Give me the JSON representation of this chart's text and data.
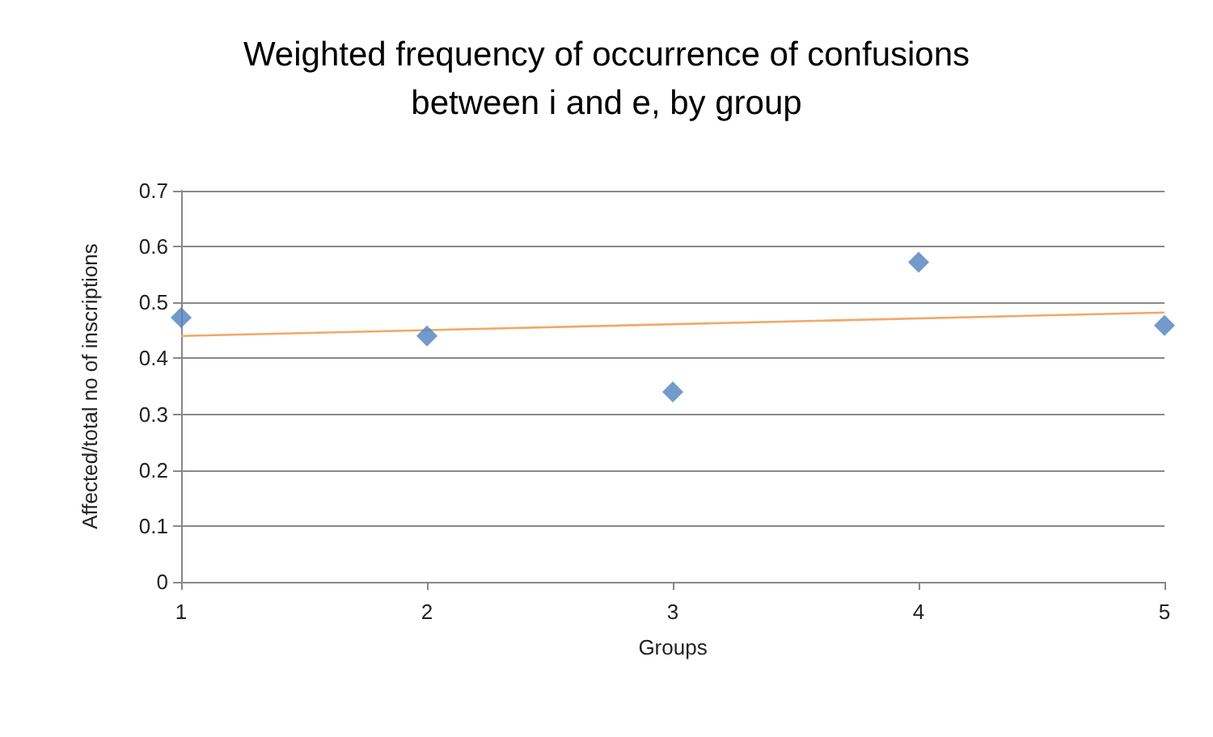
{
  "chart_data": {
    "type": "scatter",
    "title": "Weighted frequency of occurrence of confusions\nbetween i and e, by group",
    "xlabel": "Groups",
    "ylabel": "Affected/total no of inscriptions",
    "x": [
      1,
      2,
      3,
      4,
      5
    ],
    "series": [
      {
        "color": "#4f81bd",
        "values": [
          0.473,
          0.44,
          0.34,
          0.572,
          0.459
        ]
      },
      {
        "type": "line",
        "marker": "none",
        "color": "#f0a868",
        "x": [
          1,
          5
        ],
        "values": [
          0.44,
          0.482
        ]
      }
    ],
    "xlim": [
      1,
      5
    ],
    "xticks": [
      1,
      2,
      3,
      4,
      5
    ],
    "ylim": [
      0,
      0.7
    ],
    "yticks": [
      0,
      0.1,
      0.2,
      0.3,
      0.4,
      0.5,
      0.6,
      0.7
    ],
    "grid": "y",
    "marker": "diamond"
  }
}
